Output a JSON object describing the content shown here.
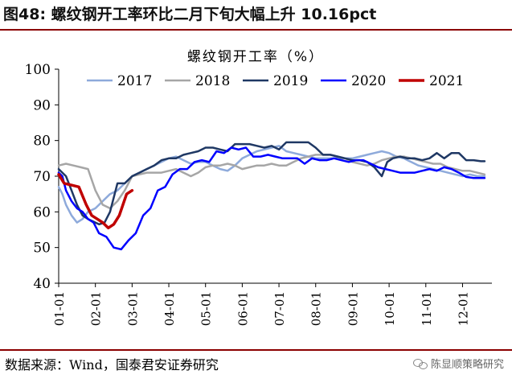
{
  "figure_title": "图48: 螺纹钢开工率环比二月下旬大幅上升 10.16pct",
  "source_text": "数据来源：Wind，国泰君安证券研究",
  "watermark_text": "陈显顺策略研究",
  "watermark_icon": "wechat-icon",
  "chart_data": {
    "type": "line",
    "title": "螺纹钢开工率（%）",
    "xlabel": "",
    "ylabel": "",
    "ylim": [
      40,
      100
    ],
    "yticks": [
      40,
      50,
      60,
      70,
      80,
      90,
      100
    ],
    "xlim": [
      1,
      12.8
    ],
    "xticks": [
      "01-01",
      "02-01",
      "03-01",
      "04-01",
      "05-01",
      "06-01",
      "07-01",
      "08-01",
      "09-01",
      "10-01",
      "11-01",
      "12-01"
    ],
    "grid": false,
    "legend_position": "top",
    "series": [
      {
        "name": "2017",
        "color": "#8eaadb",
        "width": 2.5,
        "x": [
          1,
          1.1,
          1.2,
          1.35,
          1.5,
          1.65,
          1.8,
          2,
          2.2,
          2.4,
          2.6,
          2.8,
          3,
          3.2,
          3.4,
          3.6,
          3.8,
          4,
          4.2,
          4.4,
          4.6,
          4.8,
          5,
          5.2,
          5.4,
          5.6,
          5.8,
          6,
          6.2,
          6.4,
          6.6,
          6.8,
          7,
          7.2,
          7.4,
          7.6,
          7.8,
          8,
          8.2,
          8.4,
          8.6,
          8.8,
          9,
          9.2,
          9.4,
          9.6,
          9.8,
          10,
          10.2,
          10.4,
          10.6,
          10.8,
          11,
          11.2,
          11.4,
          11.6,
          11.8,
          12,
          12.2,
          12.4,
          12.6
        ],
        "y": [
          67,
          65,
          62,
          59,
          57,
          58,
          60,
          61,
          63,
          65,
          66,
          68,
          70,
          71,
          72,
          73,
          74,
          75,
          75.5,
          74.5,
          73.5,
          74,
          74,
          73,
          72,
          71.5,
          73,
          75,
          76,
          77,
          77.5,
          78,
          78.5,
          77,
          76.5,
          76,
          75.5,
          75,
          75,
          75,
          75,
          75,
          75,
          75.5,
          76,
          76.5,
          77,
          76.5,
          75.5,
          75,
          74,
          73,
          72.5,
          72,
          71.5,
          71,
          70.5,
          70,
          70.5,
          70,
          70
        ]
      },
      {
        "name": "2018",
        "color": "#a6a6a6",
        "width": 2.5,
        "x": [
          1,
          1.2,
          1.4,
          1.6,
          1.8,
          2,
          2.2,
          2.4,
          2.6,
          2.8,
          3,
          3.2,
          3.4,
          3.6,
          3.8,
          4,
          4.2,
          4.4,
          4.6,
          4.8,
          5,
          5.2,
          5.4,
          5.6,
          5.8,
          6,
          6.2,
          6.4,
          6.6,
          6.8,
          7,
          7.2,
          7.4,
          7.6,
          7.8,
          8,
          8.2,
          8.4,
          8.6,
          8.8,
          9,
          9.2,
          9.4,
          9.6,
          9.8,
          10,
          10.2,
          10.4,
          10.6,
          10.8,
          11,
          11.2,
          11.4,
          11.6,
          11.8,
          12,
          12.2,
          12.4,
          12.6
        ],
        "y": [
          73,
          73.5,
          73,
          72.5,
          72,
          66,
          62,
          61,
          63,
          66,
          70,
          70.5,
          71,
          71,
          71,
          71.5,
          72,
          71,
          70,
          71,
          72.5,
          73,
          73,
          73.5,
          73,
          72,
          72.5,
          73,
          73,
          73.5,
          73,
          73,
          74,
          75,
          75.5,
          76,
          76,
          76,
          75.5,
          75,
          74,
          73.5,
          73,
          73.5,
          74.5,
          75,
          75.5,
          75.5,
          75,
          74.5,
          74,
          73.5,
          73.5,
          72.5,
          72,
          71.5,
          71.5,
          71,
          70.5
        ]
      },
      {
        "name": "2019",
        "color": "#1f3864",
        "width": 2.5,
        "x": [
          1,
          1.1,
          1.2,
          1.35,
          1.5,
          1.65,
          1.8,
          2,
          2.1,
          2.25,
          2.4,
          2.6,
          2.8,
          3,
          3.2,
          3.4,
          3.6,
          3.8,
          4,
          4.2,
          4.4,
          4.6,
          4.8,
          5,
          5.2,
          5.4,
          5.6,
          5.8,
          6,
          6.2,
          6.4,
          6.6,
          6.8,
          7,
          7.2,
          7.4,
          7.6,
          7.8,
          8,
          8.2,
          8.4,
          8.6,
          8.8,
          9,
          9.2,
          9.4,
          9.6,
          9.8,
          9.95,
          10.1,
          10.3,
          10.5,
          10.7,
          10.9,
          11.1,
          11.3,
          11.5,
          11.7,
          11.9,
          12.1,
          12.3,
          12.5,
          12.6
        ],
        "y": [
          72,
          71,
          70,
          66,
          62,
          59,
          58,
          57,
          56.5,
          57,
          60,
          68,
          68,
          70,
          71,
          72,
          73,
          74.5,
          75,
          75,
          76,
          76.5,
          77,
          78,
          78,
          77.5,
          77,
          79,
          79,
          79,
          78.5,
          78,
          78.5,
          77.5,
          79.5,
          79.5,
          79.5,
          79.5,
          78,
          76,
          76,
          75.5,
          75,
          74.5,
          74.5,
          74,
          72.5,
          70,
          74,
          75,
          75.5,
          75,
          75,
          74.5,
          75,
          76.5,
          75,
          76.5,
          76.5,
          74.5,
          74.5,
          74.2,
          74.2
        ]
      },
      {
        "name": "2020",
        "color": "#0000ff",
        "width": 2.5,
        "x": [
          1,
          1.1,
          1.2,
          1.35,
          1.5,
          1.65,
          1.8,
          1.95,
          2.1,
          2.3,
          2.5,
          2.7,
          2.9,
          3.1,
          3.3,
          3.5,
          3.7,
          3.9,
          4.1,
          4.3,
          4.5,
          4.7,
          4.9,
          5.1,
          5.3,
          5.5,
          5.7,
          5.9,
          6.1,
          6.3,
          6.5,
          6.7,
          6.9,
          7.1,
          7.3,
          7.5,
          7.7,
          7.9,
          8.1,
          8.3,
          8.5,
          8.7,
          8.9,
          9.1,
          9.3,
          9.5,
          9.7,
          9.9,
          10.1,
          10.3,
          10.5,
          10.7,
          10.9,
          11.1,
          11.3,
          11.5,
          11.7,
          11.9,
          12.1,
          12.3,
          12.5,
          12.6
        ],
        "y": [
          71,
          70,
          66,
          63,
          61,
          60,
          58,
          57,
          54,
          53,
          50,
          49.5,
          52,
          54,
          59,
          61,
          66,
          67,
          70.5,
          72,
          72,
          74,
          74.5,
          74,
          77,
          76.5,
          78,
          77.5,
          78,
          75.5,
          75.5,
          76,
          75.5,
          75,
          75,
          75,
          73.5,
          75,
          74.5,
          74.5,
          75,
          74.5,
          74,
          74.5,
          74.5,
          73.5,
          72.5,
          72,
          71.5,
          71,
          71,
          71,
          71.5,
          72,
          71.5,
          72.5,
          72,
          71,
          69.8,
          69.5,
          69.5,
          69.5
        ]
      },
      {
        "name": "2021",
        "color": "#c00000",
        "width": 3.5,
        "x": [
          1,
          1.15,
          1.35,
          1.55,
          1.75,
          1.9,
          2.05,
          2.2,
          2.35,
          2.5,
          2.65,
          2.85,
          3
        ],
        "y": [
          70.5,
          68,
          67.5,
          67,
          62,
          59,
          58,
          57,
          55.5,
          56.5,
          59,
          65,
          66
        ]
      }
    ]
  }
}
